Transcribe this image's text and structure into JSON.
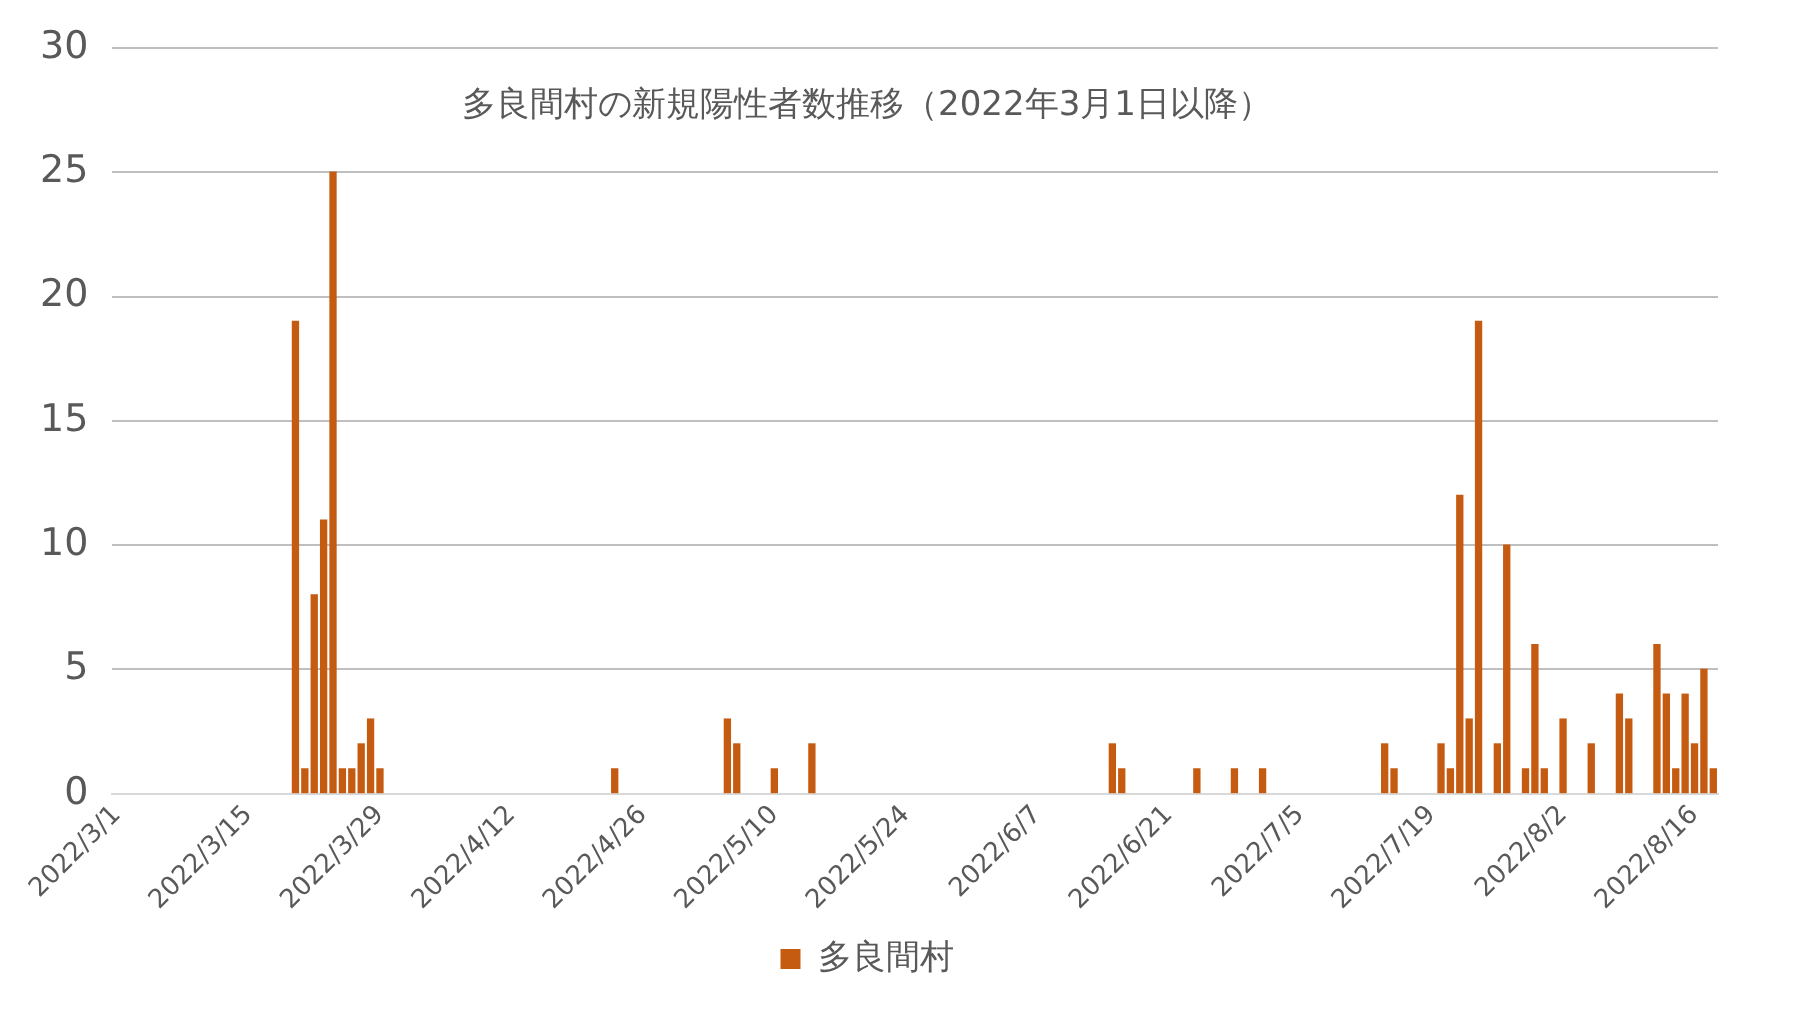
{
  "chart_data": {
    "type": "bar",
    "title": "多良間村の新規陽性者数推移（2022年3月1日以降）",
    "x": [
      "2022-03-20",
      "2022-03-21",
      "2022-03-22",
      "2022-03-23",
      "2022-03-24",
      "2022-03-25",
      "2022-03-26",
      "2022-03-27",
      "2022-03-28",
      "2022-03-29",
      "2022-04-23",
      "2022-05-05",
      "2022-05-06",
      "2022-05-10",
      "2022-05-14",
      "2022-06-15",
      "2022-06-16",
      "2022-06-24",
      "2022-06-28",
      "2022-07-01",
      "2022-07-14",
      "2022-07-15",
      "2022-07-20",
      "2022-07-21",
      "2022-07-22",
      "2022-07-23",
      "2022-07-24",
      "2022-07-26",
      "2022-07-27",
      "2022-07-29",
      "2022-07-30",
      "2022-07-31",
      "2022-08-02",
      "2022-08-05",
      "2022-08-08",
      "2022-08-09",
      "2022-08-12",
      "2022-08-13",
      "2022-08-14",
      "2022-08-15",
      "2022-08-16",
      "2022-08-17",
      "2022-08-18"
    ],
    "series": [
      {
        "name": "多良間村",
        "color": "#c55a11",
        "values": [
          19,
          1,
          8,
          11,
          25,
          1,
          1,
          2,
          3,
          1,
          1,
          3,
          2,
          1,
          2,
          2,
          1,
          1,
          1,
          1,
          2,
          1,
          2,
          1,
          12,
          3,
          19,
          2,
          10,
          1,
          6,
          1,
          3,
          2,
          4,
          3,
          6,
          4,
          1,
          4,
          2,
          5,
          1
        ]
      }
    ],
    "xlim": [
      "2022-03-01",
      "2022-08-18"
    ],
    "xticks": [
      {
        "value": "2022-03-01",
        "label": "2022/3/1"
      },
      {
        "value": "2022-03-15",
        "label": "2022/3/15"
      },
      {
        "value": "2022-03-29",
        "label": "2022/3/29"
      },
      {
        "value": "2022-04-12",
        "label": "2022/4/12"
      },
      {
        "value": "2022-04-26",
        "label": "2022/4/26"
      },
      {
        "value": "2022-05-10",
        "label": "2022/5/10"
      },
      {
        "value": "2022-05-24",
        "label": "2022/5/24"
      },
      {
        "value": "2022-06-07",
        "label": "2022/6/7"
      },
      {
        "value": "2022-06-21",
        "label": "2022/6/21"
      },
      {
        "value": "2022-07-05",
        "label": "2022/7/5"
      },
      {
        "value": "2022-07-19",
        "label": "2022/7/19"
      },
      {
        "value": "2022-08-02",
        "label": "2022/8/2"
      },
      {
        "value": "2022-08-16",
        "label": "2022/8/16"
      }
    ],
    "ylim": [
      0,
      30
    ],
    "yticks": [
      0,
      5,
      10,
      15,
      20,
      25,
      30
    ],
    "grid": "y",
    "legend": "bottom"
  }
}
